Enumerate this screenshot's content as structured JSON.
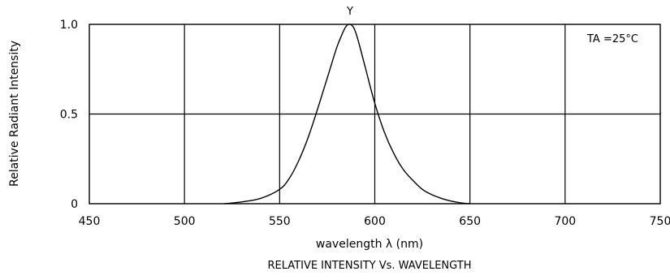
{
  "chart_data": {
    "type": "line",
    "title": "RELATIVE INTENSITY Vs. WAVELENGTH",
    "xlabel": "wavelength λ (nm)",
    "ylabel": "Relative Radiant Intensity",
    "xlim": [
      450,
      750
    ],
    "ylim": [
      0,
      1.0
    ],
    "x_ticks": [
      450,
      500,
      550,
      600,
      650,
      700,
      750
    ],
    "y_ticks": [
      0,
      0.5,
      1.0
    ],
    "x_tick_labels": [
      "450",
      "500",
      "550",
      "600",
      "650",
      "700",
      "750"
    ],
    "y_tick_labels": [
      "0",
      "0.5",
      "1.0"
    ],
    "grid": true,
    "annotations": {
      "peak_label": "Y",
      "condition": "TA =25°C"
    },
    "series": [
      {
        "x": [
          521,
          530,
          540,
          550,
          555,
          560,
          565,
          570,
          575,
          580,
          583,
          585,
          587,
          589,
          591,
          595,
          600,
          605,
          610,
          615,
          620,
          625,
          630,
          635,
          640,
          645,
          650
        ],
        "y": [
          0.0,
          0.01,
          0.03,
          0.08,
          0.14,
          0.24,
          0.37,
          0.53,
          0.7,
          0.87,
          0.95,
          0.99,
          1.0,
          0.98,
          0.92,
          0.76,
          0.56,
          0.4,
          0.28,
          0.19,
          0.13,
          0.08,
          0.05,
          0.03,
          0.015,
          0.005,
          0.0
        ]
      }
    ]
  }
}
